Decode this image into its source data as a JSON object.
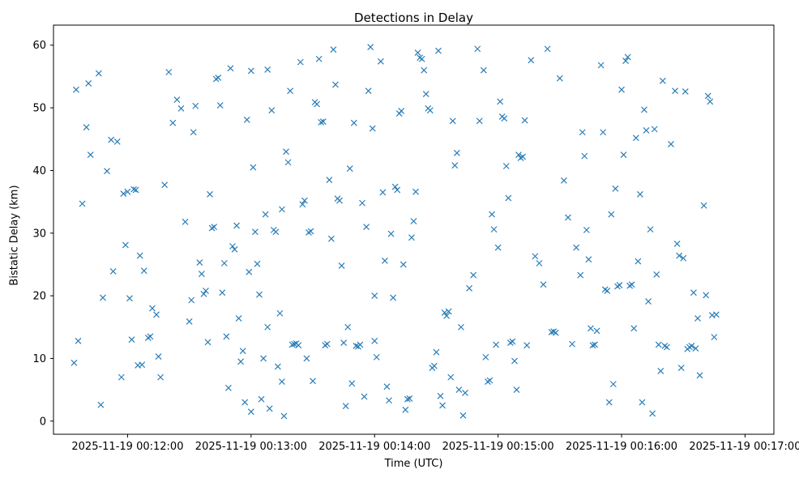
{
  "chart_data": {
    "type": "scatter",
    "title": "Detections in Delay",
    "xlabel": "Time (UTC)",
    "ylabel": "Bistatic Delay (km)",
    "marker": "x",
    "marker_color": "#1f77b4",
    "axis_color": "#000000",
    "background_color": "#ffffff",
    "legend": "none",
    "grid": "off",
    "x_unit": "seconds after 2025-11-19 00:11:00 UTC",
    "xlim_seconds": [
      24,
      374
    ],
    "ylim": [
      -2.1,
      63.2
    ],
    "x_tick_seconds": [
      60,
      120,
      180,
      240,
      300,
      360
    ],
    "x_tick_labels": [
      "2025-11-19 00:12:00",
      "2025-11-19 00:13:00",
      "2025-11-19 00:14:00",
      "2025-11-19 00:15:00",
      "2025-11-19 00:16:00",
      "2025-11-19 00:17:00"
    ],
    "y_ticks": [
      0,
      10,
      20,
      30,
      40,
      50,
      60
    ],
    "points": [
      [
        34,
        9.3
      ],
      [
        35,
        52.9
      ],
      [
        36,
        12.8
      ],
      [
        38,
        34.7
      ],
      [
        40,
        46.9
      ],
      [
        41,
        53.9
      ],
      [
        42,
        42.5
      ],
      [
        46,
        55.5
      ],
      [
        47,
        2.6
      ],
      [
        48,
        19.7
      ],
      [
        50,
        39.9
      ],
      [
        52,
        44.9
      ],
      [
        53,
        23.9
      ],
      [
        55,
        44.6
      ],
      [
        57,
        7.0
      ],
      [
        58,
        36.3
      ],
      [
        59,
        28.1
      ],
      [
        60,
        36.6
      ],
      [
        61,
        19.6
      ],
      [
        62,
        13.0
      ],
      [
        63,
        37.0
      ],
      [
        64,
        36.9
      ],
      [
        65,
        8.9
      ],
      [
        66,
        26.4
      ],
      [
        67,
        9.0
      ],
      [
        68,
        24.0
      ],
      [
        70,
        13.3
      ],
      [
        71,
        13.5
      ],
      [
        72,
        18.0
      ],
      [
        74,
        17.0
      ],
      [
        75,
        10.3
      ],
      [
        76,
        7.0
      ],
      [
        78,
        37.7
      ],
      [
        80,
        55.7
      ],
      [
        82,
        47.6
      ],
      [
        84,
        51.3
      ],
      [
        86,
        49.9
      ],
      [
        88,
        31.8
      ],
      [
        90,
        15.9
      ],
      [
        91,
        19.3
      ],
      [
        92,
        46.1
      ],
      [
        93,
        50.3
      ],
      [
        95,
        25.3
      ],
      [
        96,
        23.5
      ],
      [
        97,
        20.3
      ],
      [
        98,
        20.8
      ],
      [
        99,
        12.6
      ],
      [
        100,
        36.2
      ],
      [
        101,
        30.8
      ],
      [
        102,
        31.0
      ],
      [
        103,
        54.6
      ],
      [
        104,
        54.8
      ],
      [
        105,
        50.4
      ],
      [
        106,
        20.5
      ],
      [
        107,
        25.2
      ],
      [
        108,
        13.5
      ],
      [
        109,
        5.3
      ],
      [
        110,
        56.3
      ],
      [
        111,
        27.9
      ],
      [
        112,
        27.4
      ],
      [
        113,
        31.2
      ],
      [
        114,
        16.4
      ],
      [
        115,
        9.5
      ],
      [
        116,
        11.2
      ],
      [
        117,
        3.0
      ],
      [
        118,
        48.1
      ],
      [
        119,
        23.8
      ],
      [
        120,
        1.5
      ],
      [
        120,
        55.9
      ],
      [
        121,
        40.5
      ],
      [
        122,
        30.2
      ],
      [
        123,
        25.1
      ],
      [
        124,
        20.2
      ],
      [
        125,
        3.5
      ],
      [
        126,
        10.0
      ],
      [
        127,
        33.0
      ],
      [
        128,
        56.1
      ],
      [
        129,
        2.0
      ],
      [
        130,
        49.6
      ],
      [
        131,
        30.5
      ],
      [
        132,
        30.2
      ],
      [
        133,
        8.7
      ],
      [
        134,
        17.2
      ],
      [
        135,
        6.3
      ],
      [
        136,
        0.8
      ],
      [
        137,
        43.0
      ],
      [
        138,
        41.3
      ],
      [
        139,
        52.7
      ],
      [
        140,
        12.2
      ],
      [
        141,
        12.3
      ],
      [
        142,
        12.4
      ],
      [
        143,
        12.1
      ],
      [
        144,
        57.3
      ],
      [
        145,
        34.6
      ],
      [
        146,
        35.2
      ],
      [
        147,
        10.0
      ],
      [
        148,
        30.1
      ],
      [
        149,
        30.3
      ],
      [
        150,
        6.4
      ],
      [
        135,
        33.8
      ],
      [
        128,
        15.0
      ],
      [
        151,
        50.9
      ],
      [
        152,
        50.6
      ],
      [
        153,
        57.8
      ],
      [
        154,
        47.7
      ],
      [
        155,
        47.8
      ],
      [
        156,
        12.1
      ],
      [
        157,
        12.3
      ],
      [
        158,
        38.5
      ],
      [
        159,
        29.1
      ],
      [
        160,
        59.3
      ],
      [
        161,
        53.7
      ],
      [
        162,
        35.5
      ],
      [
        163,
        35.2
      ],
      [
        164,
        24.8
      ],
      [
        165,
        12.5
      ],
      [
        166,
        2.4
      ],
      [
        167,
        15.0
      ],
      [
        168,
        40.3
      ],
      [
        169,
        6.0
      ],
      [
        170,
        47.6
      ],
      [
        171,
        12.0
      ],
      [
        172,
        11.9
      ],
      [
        173,
        12.2
      ],
      [
        174,
        34.8
      ],
      [
        175,
        3.9
      ],
      [
        176,
        31.0
      ],
      [
        177,
        52.7
      ],
      [
        178,
        59.7
      ],
      [
        179,
        46.7
      ],
      [
        180,
        20.0
      ],
      [
        180,
        12.8
      ],
      [
        181,
        10.2
      ],
      [
        183,
        57.4
      ],
      [
        184,
        36.5
      ],
      [
        185,
        25.6
      ],
      [
        186,
        5.5
      ],
      [
        187,
        3.3
      ],
      [
        188,
        29.9
      ],
      [
        189,
        19.7
      ],
      [
        190,
        37.4
      ],
      [
        191,
        36.9
      ],
      [
        192,
        49.1
      ],
      [
        193,
        49.5
      ],
      [
        194,
        25.0
      ],
      [
        195,
        1.8
      ],
      [
        196,
        3.5
      ],
      [
        197,
        3.6
      ],
      [
        198,
        29.3
      ],
      [
        199,
        31.9
      ],
      [
        200,
        36.6
      ],
      [
        201,
        58.8
      ],
      [
        202,
        58.0
      ],
      [
        203,
        57.8
      ],
      [
        204,
        56.0
      ],
      [
        205,
        52.2
      ],
      [
        206,
        49.9
      ],
      [
        207,
        49.6
      ],
      [
        208,
        8.5
      ],
      [
        209,
        8.8
      ],
      [
        210,
        11.0
      ],
      [
        211,
        59.1
      ],
      [
        212,
        4.0
      ],
      [
        213,
        2.5
      ],
      [
        214,
        17.3
      ],
      [
        215,
        16.8
      ],
      [
        216,
        17.5
      ],
      [
        217,
        7.0
      ],
      [
        218,
        47.9
      ],
      [
        219,
        40.8
      ],
      [
        220,
        42.8
      ],
      [
        221,
        5.0
      ],
      [
        222,
        15.0
      ],
      [
        223,
        0.9
      ],
      [
        224,
        4.5
      ],
      [
        226,
        21.2
      ],
      [
        228,
        23.3
      ],
      [
        230,
        59.4
      ],
      [
        231,
        47.9
      ],
      [
        233,
        56.0
      ],
      [
        234,
        10.2
      ],
      [
        235,
        6.3
      ],
      [
        236,
        6.5
      ],
      [
        237,
        33.0
      ],
      [
        238,
        30.6
      ],
      [
        239,
        12.2
      ],
      [
        240,
        27.7
      ],
      [
        241,
        51.0
      ],
      [
        242,
        48.6
      ],
      [
        243,
        48.3
      ],
      [
        244,
        40.7
      ],
      [
        245,
        35.6
      ],
      [
        246,
        12.5
      ],
      [
        247,
        12.7
      ],
      [
        248,
        9.6
      ],
      [
        249,
        5.0
      ],
      [
        250,
        42.5
      ],
      [
        251,
        42.0
      ],
      [
        252,
        42.2
      ],
      [
        253,
        48.0
      ],
      [
        254,
        12.1
      ],
      [
        256,
        57.6
      ],
      [
        258,
        26.3
      ],
      [
        260,
        25.2
      ],
      [
        262,
        21.8
      ],
      [
        264,
        59.4
      ],
      [
        266,
        14.2
      ],
      [
        267,
        14.3
      ],
      [
        268,
        14.1
      ],
      [
        270,
        54.7
      ],
      [
        272,
        38.4
      ],
      [
        274,
        32.5
      ],
      [
        276,
        12.3
      ],
      [
        278,
        27.7
      ],
      [
        280,
        23.3
      ],
      [
        281,
        46.1
      ],
      [
        282,
        42.3
      ],
      [
        283,
        30.5
      ],
      [
        284,
        25.8
      ],
      [
        285,
        14.8
      ],
      [
        286,
        12.1
      ],
      [
        287,
        12.2
      ],
      [
        288,
        14.4
      ],
      [
        290,
        56.8
      ],
      [
        291,
        46.1
      ],
      [
        292,
        21.0
      ],
      [
        293,
        20.8
      ],
      [
        294,
        3.0
      ],
      [
        295,
        33.0
      ],
      [
        296,
        5.9
      ],
      [
        297,
        37.1
      ],
      [
        298,
        21.5
      ],
      [
        299,
        21.7
      ],
      [
        300,
        52.9
      ],
      [
        301,
        42.5
      ],
      [
        302,
        57.5
      ],
      [
        303,
        58.1
      ],
      [
        304,
        21.6
      ],
      [
        305,
        21.8
      ],
      [
        306,
        14.8
      ],
      [
        307,
        45.2
      ],
      [
        308,
        25.5
      ],
      [
        309,
        36.2
      ],
      [
        310,
        3.0
      ],
      [
        311,
        49.7
      ],
      [
        312,
        46.4
      ],
      [
        313,
        19.1
      ],
      [
        314,
        30.6
      ],
      [
        315,
        1.2
      ],
      [
        316,
        46.6
      ],
      [
        317,
        23.4
      ],
      [
        318,
        12.2
      ],
      [
        319,
        8.0
      ],
      [
        320,
        54.3
      ],
      [
        321,
        12.0
      ],
      [
        322,
        11.8
      ],
      [
        324,
        44.2
      ],
      [
        326,
        52.7
      ],
      [
        327,
        28.3
      ],
      [
        328,
        26.4
      ],
      [
        329,
        8.5
      ],
      [
        330,
        26.0
      ],
      [
        331,
        52.6
      ],
      [
        332,
        11.5
      ],
      [
        333,
        11.8
      ],
      [
        334,
        12.0
      ],
      [
        335,
        20.5
      ],
      [
        336,
        11.6
      ],
      [
        337,
        16.4
      ],
      [
        338,
        7.3
      ],
      [
        340,
        34.4
      ],
      [
        341,
        20.1
      ],
      [
        342,
        51.9
      ],
      [
        343,
        51.0
      ],
      [
        344,
        16.9
      ],
      [
        345,
        13.4
      ],
      [
        346,
        17.0
      ]
    ]
  }
}
